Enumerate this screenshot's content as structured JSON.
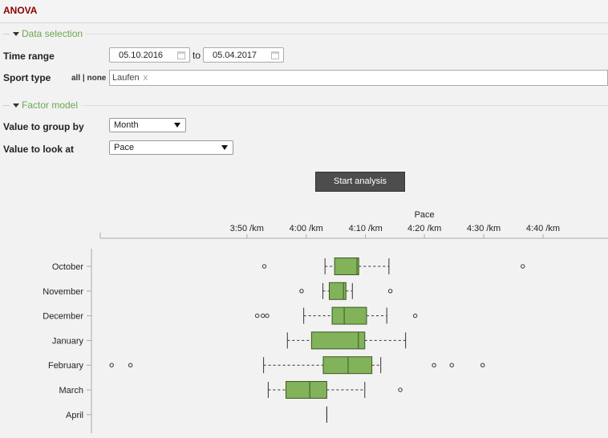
{
  "app": {
    "title": "ANOVA"
  },
  "data_selection": {
    "legend": "Data selection",
    "time_range_label": "Time range",
    "from_date": "05.10.2016",
    "to_label": "to",
    "to_date": "05.04.2017",
    "sport_type_label": "Sport type",
    "all_none": "all | none",
    "selected_sport": "Laufen",
    "remove_tag": "x"
  },
  "factor_model": {
    "legend": "Factor model",
    "group_by_label": "Value to group by",
    "group_by_value": "Month",
    "look_at_label": "Value to look at",
    "look_at_value": "Pace"
  },
  "start_button": "Start analysis",
  "chart_data": {
    "type": "boxplot",
    "title": "Pace",
    "x_unit": "min/km",
    "xlim": [
      3.42,
      4.85
    ],
    "x_ticks": [
      {
        "v": 3.833,
        "label": "3:50 /km"
      },
      {
        "v": 4.0,
        "label": "4:00 /km"
      },
      {
        "v": 4.167,
        "label": "4:10 /km"
      },
      {
        "v": 4.333,
        "label": "4:20 /km"
      },
      {
        "v": 4.5,
        "label": "4:30 /km"
      },
      {
        "v": 4.667,
        "label": "4:40 /km"
      }
    ],
    "categories": [
      "October",
      "November",
      "December",
      "January",
      "February",
      "March",
      "April"
    ],
    "boxes": [
      {
        "name": "October",
        "wmin": 4.053,
        "q1": 4.08,
        "median": 4.143,
        "q3": 4.148,
        "wmax": 4.233,
        "outliers": [
          3.882,
          4.61
        ]
      },
      {
        "name": "November",
        "wmin": 4.047,
        "q1": 4.065,
        "median": 4.105,
        "q3": 4.112,
        "wmax": 4.13,
        "outliers": [
          3.987,
          4.237
        ]
      },
      {
        "name": "December",
        "wmin": 3.993,
        "q1": 4.073,
        "median": 4.107,
        "q3": 4.17,
        "wmax": 4.227,
        "outliers": [
          3.862,
          3.878,
          3.89,
          4.307
        ]
      },
      {
        "name": "January",
        "wmin": 3.947,
        "q1": 4.015,
        "median": 4.147,
        "q3": 4.165,
        "wmax": 4.28,
        "outliers": []
      },
      {
        "name": "February",
        "wmin": 3.88,
        "q1": 4.048,
        "median": 4.118,
        "q3": 4.185,
        "wmax": 4.21,
        "outliers": [
          3.452,
          3.505,
          4.36,
          4.41,
          4.497
        ]
      },
      {
        "name": "March",
        "wmin": 3.893,
        "q1": 3.943,
        "median": 4.01,
        "q3": 4.058,
        "wmax": 4.165,
        "outliers": [
          4.265
        ]
      },
      {
        "name": "April",
        "wmin": 4.058,
        "q1": 4.058,
        "median": 4.058,
        "q3": 4.058,
        "wmax": 4.058,
        "outliers": []
      }
    ],
    "box_color": "#82b25a",
    "box_stroke": "#3a5a22"
  }
}
